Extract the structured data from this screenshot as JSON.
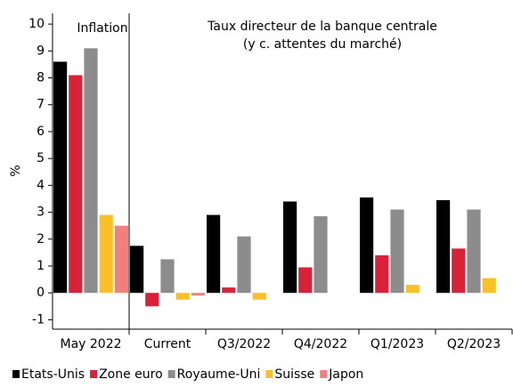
{
  "chart_data": {
    "type": "bar",
    "annotations": [
      "Inflation",
      "Taux directeur de la banque centrale",
      "(y c. attentes du marché)"
    ],
    "y_label": "%",
    "categories": [
      "May 2022",
      "Current",
      "Q3/2022",
      "Q4/2022",
      "Q1/2023",
      "Q2/2023"
    ],
    "series": [
      {
        "name": "Etats-Unis",
        "color": "#000000",
        "values": [
          8.6,
          1.75,
          2.9,
          3.4,
          3.55,
          3.45
        ]
      },
      {
        "name": "Zone euro",
        "color": "#d9213a",
        "values": [
          8.1,
          -0.5,
          0.2,
          0.95,
          1.4,
          1.65
        ]
      },
      {
        "name": "Royaume-Uni",
        "color": "#8c8c8c",
        "values": [
          9.1,
          1.25,
          2.1,
          2.85,
          3.1,
          3.1
        ]
      },
      {
        "name": "Suisse",
        "color": "#f9c02a",
        "values": [
          2.9,
          -0.25,
          -0.25,
          null,
          0.3,
          0.55
        ]
      },
      {
        "name": "Japon",
        "color": "#f08080",
        "values": [
          2.5,
          -0.1,
          null,
          null,
          null,
          null
        ]
      }
    ],
    "ylim": [
      -1.35,
      10.4
    ],
    "yticks": [
      -1,
      0,
      1,
      2,
      3,
      4,
      5,
      6,
      7,
      8,
      9,
      10
    ]
  }
}
